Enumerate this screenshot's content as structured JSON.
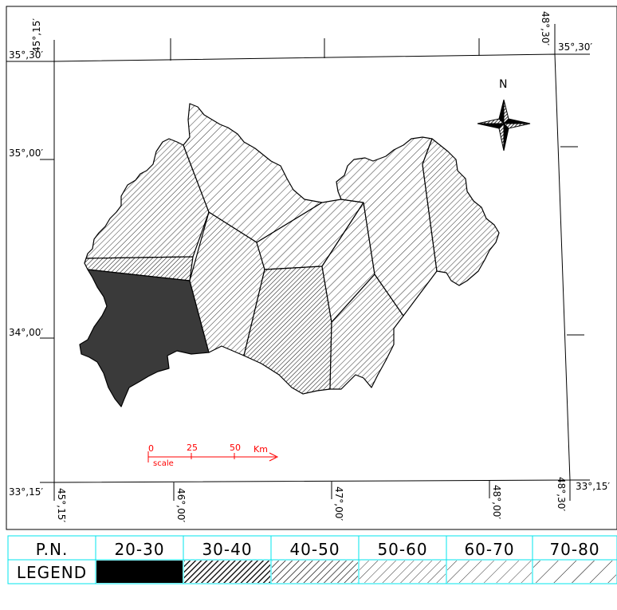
{
  "coords": {
    "top_left_lon": "45°,15′",
    "top_right_lon": "48°,30′",
    "top_right_lat": "35°,30′",
    "lat_3530": "35°,30′",
    "lat_3500": "35°,00′",
    "lat_3400": "34°,00′",
    "bottom_left_lat": "33°,15′",
    "bottom_right_lat": "33°,15′",
    "bottom_lon_4515": "45°,15′",
    "bottom_lon_4600": "46°,00′",
    "bottom_lon_4700": "47°,00′",
    "bottom_lon_4800": "48°,00′",
    "bottom_lon_4830": "48°,30′"
  },
  "north_label": "N",
  "scale": {
    "ticks": [
      "0",
      "25",
      "50"
    ],
    "unit": "Km",
    "caption": "scale",
    "color": "#ff0000"
  },
  "legend": {
    "header_label": "P.N.",
    "row_label": "LEGEND",
    "classes": [
      "20-30",
      "30-40",
      "40-50",
      "50-60",
      "60-70",
      "70-80"
    ],
    "border_color": "#00e5ee"
  }
}
